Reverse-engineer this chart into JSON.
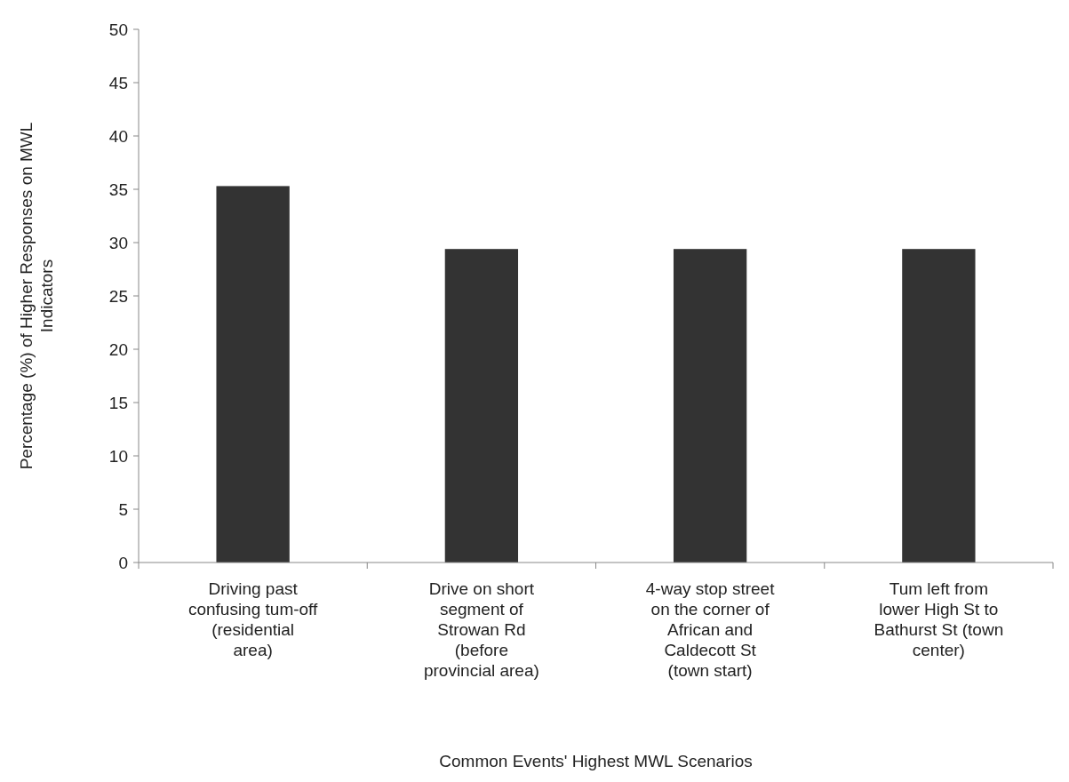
{
  "chart_data": {
    "type": "bar",
    "xlabel": "Common Events' Highest MWL Scenarios",
    "ylabel": "Percentage (%) of Higher Responses on MWL Indicators",
    "categories": [
      "Driving past confusing tum-off (residential area)",
      "Drive on short segment of Strowan Rd (before provincial area)",
      "4-way stop street on the corner of African and Caldecott St (town start)",
      "Tum left from lower High St to Bathurst St (town center)"
    ],
    "values": [
      35.3,
      29.4,
      29.4,
      29.4
    ],
    "color": "#333333",
    "ylim": [
      0,
      50
    ],
    "yticks": [
      0,
      5,
      10,
      15,
      20,
      25,
      30,
      35,
      40,
      45,
      50
    ],
    "grid": false
  }
}
